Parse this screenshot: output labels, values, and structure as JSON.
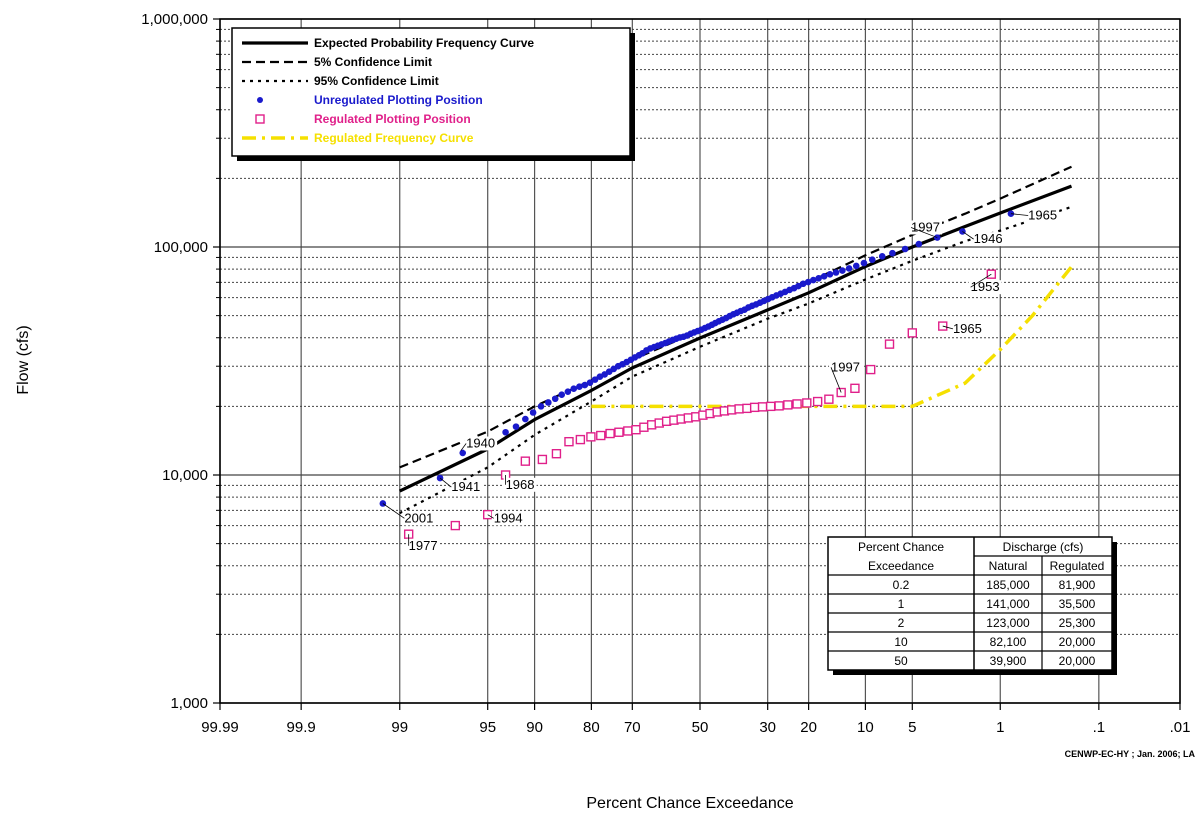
{
  "chart_data": {
    "type": "scatter",
    "xlabel": "Percent Chance Exceedance",
    "ylabel": "Flow (cfs)",
    "x_scale": "normal-probability (reversed)",
    "y_scale": "log",
    "ylim": [
      1000,
      1000000
    ],
    "xlim": [
      99.99,
      0.01
    ],
    "x_ticks": [
      {
        "p": 99.99,
        "label": "99.99"
      },
      {
        "p": 99.9,
        "label": "99.9"
      },
      {
        "p": 99,
        "label": "99"
      },
      {
        "p": 95,
        "label": "95"
      },
      {
        "p": 90,
        "label": "90"
      },
      {
        "p": 80,
        "label": "80"
      },
      {
        "p": 70,
        "label": "70"
      },
      {
        "p": 50,
        "label": "50"
      },
      {
        "p": 30,
        "label": "30"
      },
      {
        "p": 20,
        "label": "20"
      },
      {
        "p": 10,
        "label": "10"
      },
      {
        "p": 5,
        "label": "5"
      },
      {
        "p": 1,
        "label": "1"
      },
      {
        "p": 0.1,
        "label": ".1"
      },
      {
        "p": 0.01,
        "label": ".01"
      }
    ],
    "y_ticks": [
      {
        "v": 1000,
        "label": "1,000"
      },
      {
        "v": 10000,
        "label": "10,000"
      },
      {
        "v": 100000,
        "label": "100,000"
      },
      {
        "v": 1000000,
        "label": "1,000,000"
      }
    ],
    "grid": "on",
    "legend_position": "top-left",
    "series": [
      {
        "name": "Expected Probability Frequency Curve",
        "kind": "line",
        "style": "solid",
        "color": "#000000",
        "points": [
          [
            99,
            8500
          ],
          [
            95,
            13000
          ],
          [
            90,
            17500
          ],
          [
            80,
            23500
          ],
          [
            70,
            29500
          ],
          [
            50,
            39900
          ],
          [
            30,
            53000
          ],
          [
            20,
            63000
          ],
          [
            10,
            82100
          ],
          [
            5,
            100000
          ],
          [
            2,
            123000
          ],
          [
            1,
            141000
          ],
          [
            0.2,
            185000
          ]
        ]
      },
      {
        "name": "5% Confidence Limit",
        "kind": "line",
        "style": "dashed",
        "color": "#000000",
        "points": [
          [
            99,
            10800
          ],
          [
            95,
            15500
          ],
          [
            90,
            20000
          ],
          [
            80,
            26000
          ],
          [
            70,
            32000
          ],
          [
            50,
            43000
          ],
          [
            30,
            58000
          ],
          [
            20,
            70000
          ],
          [
            10,
            92000
          ],
          [
            5,
            113000
          ],
          [
            2,
            140000
          ],
          [
            1,
            163000
          ],
          [
            0.2,
            225000
          ]
        ]
      },
      {
        "name": "95% Confidence Limit",
        "kind": "line",
        "style": "dotted",
        "color": "#000000",
        "points": [
          [
            99,
            6800
          ],
          [
            95,
            10800
          ],
          [
            90,
            15000
          ],
          [
            80,
            21000
          ],
          [
            70,
            27000
          ],
          [
            50,
            36500
          ],
          [
            30,
            48500
          ],
          [
            20,
            56500
          ],
          [
            10,
            72000
          ],
          [
            5,
            87000
          ],
          [
            2,
            106000
          ],
          [
            1,
            118000
          ],
          [
            0.2,
            150000
          ]
        ]
      },
      {
        "name": "Unregulated Plotting Position",
        "kind": "points",
        "marker": "circle",
        "color": "#1a1acc",
        "points": [
          [
            99.3,
            7500
          ],
          [
            97.8,
            9700
          ],
          [
            96.7,
            12500
          ],
          [
            95.6,
            13400
          ],
          [
            94.5,
            14100
          ],
          [
            93.4,
            15400
          ],
          [
            92.3,
            16300
          ],
          [
            91.2,
            17600
          ],
          [
            90.2,
            18800
          ],
          [
            89.1,
            20000
          ],
          [
            88,
            20800
          ],
          [
            86.9,
            21600
          ],
          [
            85.8,
            22500
          ],
          [
            84.7,
            23200
          ],
          [
            83.6,
            23900
          ],
          [
            82.5,
            24400
          ],
          [
            81.4,
            24800
          ],
          [
            80.3,
            25400
          ],
          [
            79.2,
            26200
          ],
          [
            78.1,
            27000
          ],
          [
            77,
            27600
          ],
          [
            75.9,
            28400
          ],
          [
            74.8,
            29200
          ],
          [
            73.7,
            30000
          ],
          [
            72.6,
            30600
          ],
          [
            71.5,
            31300
          ],
          [
            70.4,
            32000
          ],
          [
            69.3,
            32800
          ],
          [
            68.2,
            33500
          ],
          [
            67.2,
            34200
          ],
          [
            66.1,
            35200
          ],
          [
            65,
            35900
          ],
          [
            63.9,
            36400
          ],
          [
            62.8,
            36900
          ],
          [
            61.7,
            37400
          ],
          [
            60.6,
            37900
          ],
          [
            59.5,
            38500
          ],
          [
            58.4,
            39100
          ],
          [
            57.3,
            39600
          ],
          [
            56.2,
            40100
          ],
          [
            55.1,
            40400
          ],
          [
            54,
            40900
          ],
          [
            52.9,
            41600
          ],
          [
            51.8,
            42200
          ],
          [
            50.7,
            42800
          ],
          [
            49.6,
            43400
          ],
          [
            48.5,
            44100
          ],
          [
            47.4,
            44800
          ],
          [
            46.3,
            45600
          ],
          [
            45.3,
            46400
          ],
          [
            44.2,
            47200
          ],
          [
            43.1,
            48000
          ],
          [
            42,
            48800
          ],
          [
            40.9,
            49800
          ],
          [
            39.8,
            50700
          ],
          [
            38.7,
            51500
          ],
          [
            37.6,
            52400
          ],
          [
            36.5,
            53100
          ],
          [
            35.4,
            54300
          ],
          [
            34.3,
            55200
          ],
          [
            33.2,
            56000
          ],
          [
            32.1,
            57000
          ],
          [
            31,
            58000
          ],
          [
            29.9,
            59100
          ],
          [
            28.8,
            60200
          ],
          [
            27.7,
            61300
          ],
          [
            26.6,
            62400
          ],
          [
            25.5,
            63500
          ],
          [
            24.4,
            64800
          ],
          [
            23.3,
            66000
          ],
          [
            22.3,
            67400
          ],
          [
            21.2,
            69000
          ],
          [
            20.1,
            70200
          ],
          [
            19,
            71600
          ],
          [
            17.9,
            72900
          ],
          [
            16.8,
            74400
          ],
          [
            15.7,
            75900
          ],
          [
            14.6,
            77300
          ],
          [
            13.5,
            78800
          ],
          [
            12.4,
            80500
          ],
          [
            11.3,
            82600
          ],
          [
            10.2,
            85000
          ],
          [
            9.1,
            88000
          ],
          [
            7.9,
            91000
          ],
          [
            6.8,
            94000
          ],
          [
            5.6,
            98000
          ],
          [
            4.5,
            103000
          ],
          [
            3.3,
            110000
          ],
          [
            2.1,
            117000
          ],
          [
            0.8,
            140000
          ]
        ]
      },
      {
        "name": "Regulated Plotting Position",
        "kind": "points",
        "marker": "square",
        "color": "#e0208a",
        "points": [
          [
            98.8,
            5500
          ],
          [
            97.1,
            6000
          ],
          [
            95,
            6700
          ],
          [
            93.4,
            10000
          ],
          [
            91.2,
            11500
          ],
          [
            88.9,
            11700
          ],
          [
            86.7,
            12400
          ],
          [
            84.5,
            14000
          ],
          [
            82.3,
            14300
          ],
          [
            80.1,
            14700
          ],
          [
            77.9,
            14900
          ],
          [
            75.7,
            15200
          ],
          [
            73.5,
            15400
          ],
          [
            71.2,
            15600
          ],
          [
            69,
            15800
          ],
          [
            66.8,
            16200
          ],
          [
            64.6,
            16600
          ],
          [
            62.4,
            16900
          ],
          [
            60.2,
            17200
          ],
          [
            58,
            17400
          ],
          [
            55.8,
            17600
          ],
          [
            53.6,
            17800
          ],
          [
            51.3,
            18000
          ],
          [
            49.1,
            18300
          ],
          [
            46.9,
            18600
          ],
          [
            44.7,
            18900
          ],
          [
            42.5,
            19100
          ],
          [
            40.3,
            19300
          ],
          [
            38.1,
            19500
          ],
          [
            35.8,
            19600
          ],
          [
            33.6,
            19800
          ],
          [
            31.4,
            19900
          ],
          [
            29.2,
            20000
          ],
          [
            27,
            20100
          ],
          [
            24.8,
            20300
          ],
          [
            22.6,
            20500
          ],
          [
            20.4,
            20700
          ],
          [
            18.1,
            21000
          ],
          [
            15.9,
            21500
          ],
          [
            13.7,
            23000
          ],
          [
            11.5,
            24000
          ],
          [
            9.3,
            29000
          ],
          [
            7.1,
            37500
          ],
          [
            5,
            42000
          ],
          [
            3,
            45000
          ],
          [
            1.2,
            76000
          ]
        ]
      },
      {
        "name": "Regulated Frequency Curve",
        "kind": "line",
        "style": "dash-dot",
        "color": "#f5e000",
        "points": [
          [
            80,
            20000
          ],
          [
            50,
            20000
          ],
          [
            30,
            20000
          ],
          [
            20,
            20000
          ],
          [
            10,
            20000
          ],
          [
            5,
            20000
          ],
          [
            2,
            25300
          ],
          [
            1,
            35500
          ],
          [
            0.5,
            50000
          ],
          [
            0.2,
            81900
          ]
        ]
      }
    ],
    "annotations": [
      {
        "text": "1940",
        "p": 96.8,
        "v": 12800,
        "tx": 96.5,
        "tv": 13200
      },
      {
        "text": "1941",
        "p": 97.8,
        "v": 9700,
        "tx": 97.3,
        "tv": 8500
      },
      {
        "text": "1968",
        "p": 93.4,
        "v": 10000,
        "tx": 93.4,
        "tv": 8700
      },
      {
        "text": "2001",
        "p": 99.3,
        "v": 7500,
        "tx": 98.9,
        "tv": 6200
      },
      {
        "text": "1994",
        "p": 95,
        "v": 6700,
        "tx": 94.5,
        "tv": 6200
      },
      {
        "text": "1977",
        "p": 98.8,
        "v": 5500,
        "tx": 98.8,
        "tv": 4700
      },
      {
        "text": "1997",
        "p": 13.7,
        "v": 23000,
        "tx": 15.5,
        "tv": 28500
      },
      {
        "text": "1965",
        "p": 3,
        "v": 45000,
        "tx": 2.5,
        "tv": 42000
      },
      {
        "text": "1953",
        "p": 1.2,
        "v": 76000,
        "tx": 1.8,
        "tv": 64000
      },
      {
        "text": "1997",
        "p": 3.3,
        "v": 110000,
        "tx": 5.1,
        "tv": 117000
      },
      {
        "text": "1946",
        "p": 2.1,
        "v": 117000,
        "tx": 1.7,
        "tv": 104000
      },
      {
        "text": "1965",
        "p": 0.8,
        "v": 140000,
        "tx": 0.55,
        "tv": 132000
      }
    ],
    "table": {
      "header_left": [
        "Percent Chance",
        "Exceedance"
      ],
      "header_right": "Discharge (cfs)",
      "sub_headers": [
        "Natural",
        "Regulated"
      ],
      "rows": [
        [
          "0.2",
          "185,000",
          "81,900"
        ],
        [
          "1",
          "141,000",
          "35,500"
        ],
        [
          "2",
          "123,000",
          "25,300"
        ],
        [
          "10",
          "82,100",
          "20,000"
        ],
        [
          "50",
          "39,900",
          "20,000"
        ]
      ]
    },
    "credit": "CENWP-EC-HY ; Jan. 2006; LA"
  }
}
